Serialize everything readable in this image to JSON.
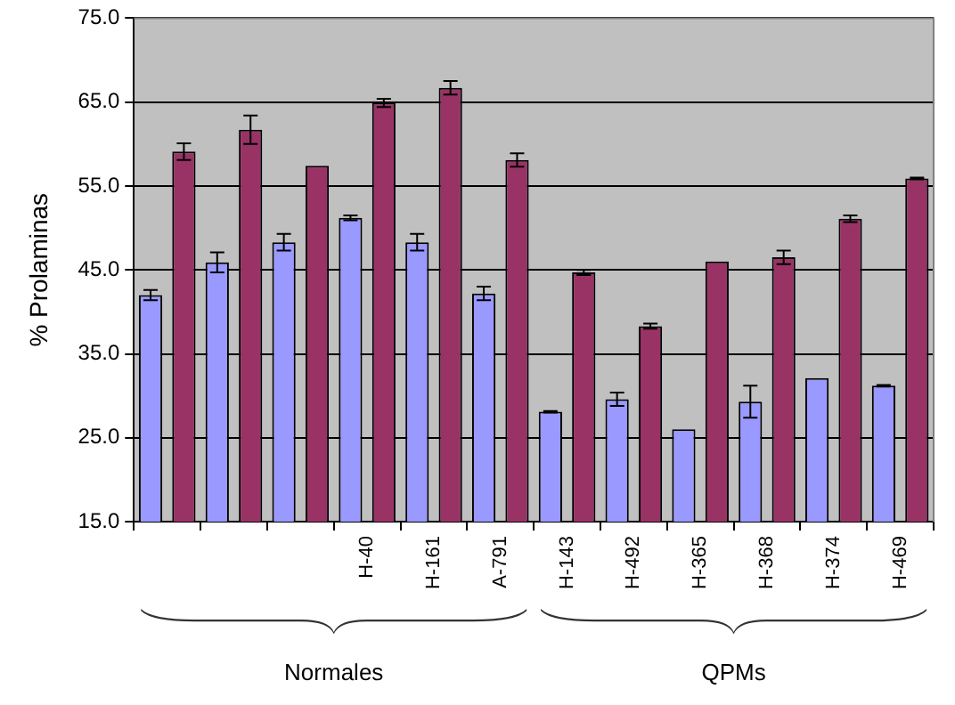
{
  "chart_data": {
    "type": "bar",
    "ylabel": "% Prolaminas",
    "categories": [
      null,
      null,
      null,
      "H-40",
      "H-161",
      "A-791",
      "H-143",
      "H-492",
      "H-365",
      "H-368",
      "H-374",
      "H-469"
    ],
    "series": [
      {
        "color": "#9999ff",
        "values": [
          42.0,
          45.9,
          48.3,
          51.2,
          48.3,
          42.2,
          28.1,
          29.6,
          26.0,
          29.3,
          32.1,
          31.2
        ],
        "errors": [
          0.6,
          1.2,
          1.0,
          0.3,
          1.0,
          0.8,
          0.1,
          0.8,
          null,
          1.9,
          null,
          0.1
        ]
      },
      {
        "color": "#993366",
        "values": [
          59.1,
          61.7,
          57.4,
          64.9,
          66.7,
          58.1,
          44.7,
          38.3,
          46.0,
          46.5,
          51.1,
          55.9
        ],
        "errors": [
          1.0,
          1.7,
          null,
          0.5,
          0.8,
          0.8,
          0.3,
          0.3,
          null,
          0.8,
          0.4,
          0.1
        ]
      }
    ],
    "ylim": [
      15,
      75
    ],
    "yticks": [
      {
        "value": 15,
        "label": "15.0"
      },
      {
        "value": 25,
        "label": "25.0"
      },
      {
        "value": 35,
        "label": "35.0"
      },
      {
        "value": 45,
        "label": "45.0"
      },
      {
        "value": 55,
        "label": "55.0"
      },
      {
        "value": 65,
        "label": "65.0"
      },
      {
        "value": 75,
        "label": "75.0"
      }
    ],
    "grid": "y",
    "legend": false,
    "annotations": [
      "Normales",
      "QPMs"
    ]
  }
}
